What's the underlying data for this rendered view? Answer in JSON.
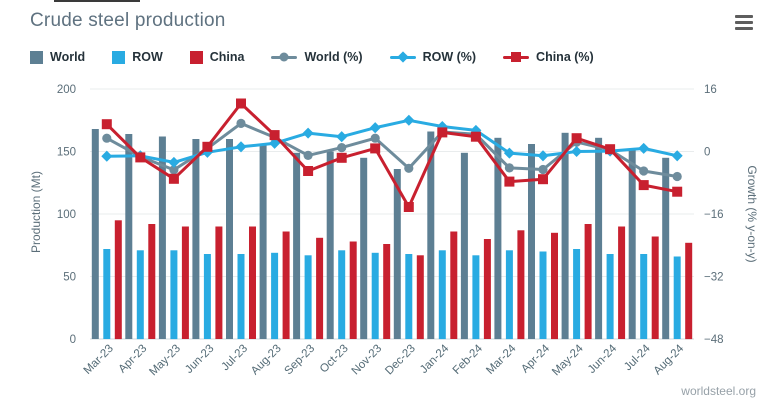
{
  "header": {
    "title": "Crude steel production"
  },
  "menu": {
    "icon": "hamburger-icon"
  },
  "footer": {
    "source": "worldsteel.org"
  },
  "chart_data": {
    "type": "combo_bar_line",
    "grid": true,
    "legend_position": "top",
    "categories": [
      "Mar-23",
      "Apr-23",
      "May-23",
      "Jun-23",
      "Jul-23",
      "Aug-23",
      "Sep-23",
      "Oct-23",
      "Nov-23",
      "Dec-23",
      "Jan-24",
      "Feb-24",
      "Mar-24",
      "Apr-24",
      "May-24",
      "Jun-24",
      "Jul-24",
      "Aug-24"
    ],
    "bar_series": [
      {
        "name": "World",
        "color": "#5d7f93",
        "values": [
          168,
          164,
          162,
          160,
          160,
          156,
          149,
          150,
          145,
          136,
          166,
          149,
          161,
          156,
          165,
          161,
          152,
          145
        ]
      },
      {
        "name": "ROW",
        "color": "#29abe2",
        "values": [
          72,
          71,
          71,
          68,
          68,
          69,
          67,
          71,
          69,
          68,
          71,
          67,
          71,
          70,
          72,
          68,
          68,
          66
        ]
      },
      {
        "name": "China",
        "color": "#c8202f",
        "values": [
          95,
          92,
          90,
          90,
          90,
          86,
          81,
          78,
          76,
          67,
          86,
          80,
          87,
          85,
          92,
          90,
          82,
          77
        ]
      }
    ],
    "line_series": [
      {
        "name": "World (%)",
        "color": "#6e8c9c",
        "marker": "circle",
        "values": [
          3.4,
          -1.3,
          -4.7,
          0.8,
          7.2,
          3.6,
          -1.0,
          1.0,
          3.4,
          -4.3,
          5.0,
          4.4,
          -4.2,
          -4.6,
          2.4,
          0.4,
          -5.0,
          -6.4
        ]
      },
      {
        "name": "ROW (%)",
        "color": "#29abe2",
        "marker": "diamond",
        "values": [
          -1.2,
          -1.1,
          -2.8,
          -0.2,
          1.2,
          2.1,
          4.7,
          3.8,
          6.1,
          8.0,
          6.4,
          5.4,
          -0.4,
          -1.1,
          0.0,
          0.1,
          0.8,
          -1.1
        ]
      },
      {
        "name": "China (%)",
        "color": "#c8202f",
        "marker": "square",
        "values": [
          7.0,
          -1.5,
          -7.0,
          1.2,
          12.3,
          4.2,
          -5.0,
          -1.6,
          0.8,
          -14.2,
          4.9,
          3.8,
          -7.7,
          -7.1,
          3.4,
          0.6,
          -8.6,
          -10.3
        ]
      }
    ],
    "left_axis": {
      "label": "Production (Mt)",
      "ticks": [
        0,
        50,
        100,
        150,
        200
      ],
      "range": [
        0,
        200
      ]
    },
    "right_axis": {
      "label": "Growth (% y-on-y)",
      "ticks": [
        16,
        0,
        -16,
        -32,
        -48
      ],
      "range": [
        -48,
        16
      ]
    }
  }
}
